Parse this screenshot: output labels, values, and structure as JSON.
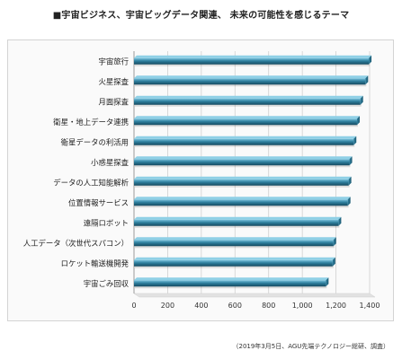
{
  "chart_data": {
    "type": "bar",
    "orientation": "horizontal",
    "title": "■宇宙ビジネス、宇宙ビッグデータ関連、 未来の可能性を感じるテーマ",
    "categories": [
      "宇宙旅行",
      "火星探査",
      "月面探査",
      "衛星・地上データ連携",
      "衛星データの利活用",
      "小惑星探査",
      "データの人工知能解析",
      "位置情報サービス",
      "遠隔ロボット",
      "人工データ（次世代スパコン）",
      "ロケット輸送機開発",
      "宇宙ごみ回収"
    ],
    "values": [
      1395,
      1375,
      1345,
      1325,
      1305,
      1280,
      1275,
      1270,
      1215,
      1185,
      1180,
      1140
    ],
    "xlim": [
      0,
      1400
    ],
    "xticks": [
      "0",
      "200",
      "400",
      "600",
      "800",
      "1,000",
      "1,200",
      "1,400"
    ],
    "bar_color": "#2e7f9e",
    "grid": true,
    "xlabel": "",
    "ylabel": ""
  },
  "source": "（2019年3月5日、AGU先端テクノロジー総研、調査）"
}
